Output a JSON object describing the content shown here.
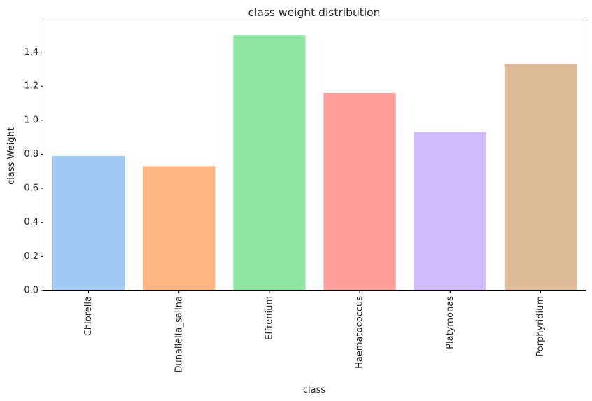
{
  "chart_data": {
    "type": "bar",
    "title": "class weight distribution",
    "xlabel": "class",
    "ylabel": "class Weight",
    "categories": [
      "Chlorella",
      "Dunaliella_salina",
      "Effrenium",
      "Haematococcus",
      "Platymonas",
      "Porphyridium"
    ],
    "values": [
      0.79,
      0.73,
      1.5,
      1.16,
      0.93,
      1.33
    ],
    "colors": [
      "#a1c9f4",
      "#ffb482",
      "#8de5a1",
      "#ff9f9b",
      "#d0bbff",
      "#debb9b"
    ],
    "yticks": [
      "0.0",
      "0.2",
      "0.4",
      "0.6",
      "0.8",
      "1.0",
      "1.2",
      "1.4"
    ],
    "ylim": [
      0,
      1.575
    ],
    "grid": false,
    "x_tick_rotation": "vertical"
  }
}
